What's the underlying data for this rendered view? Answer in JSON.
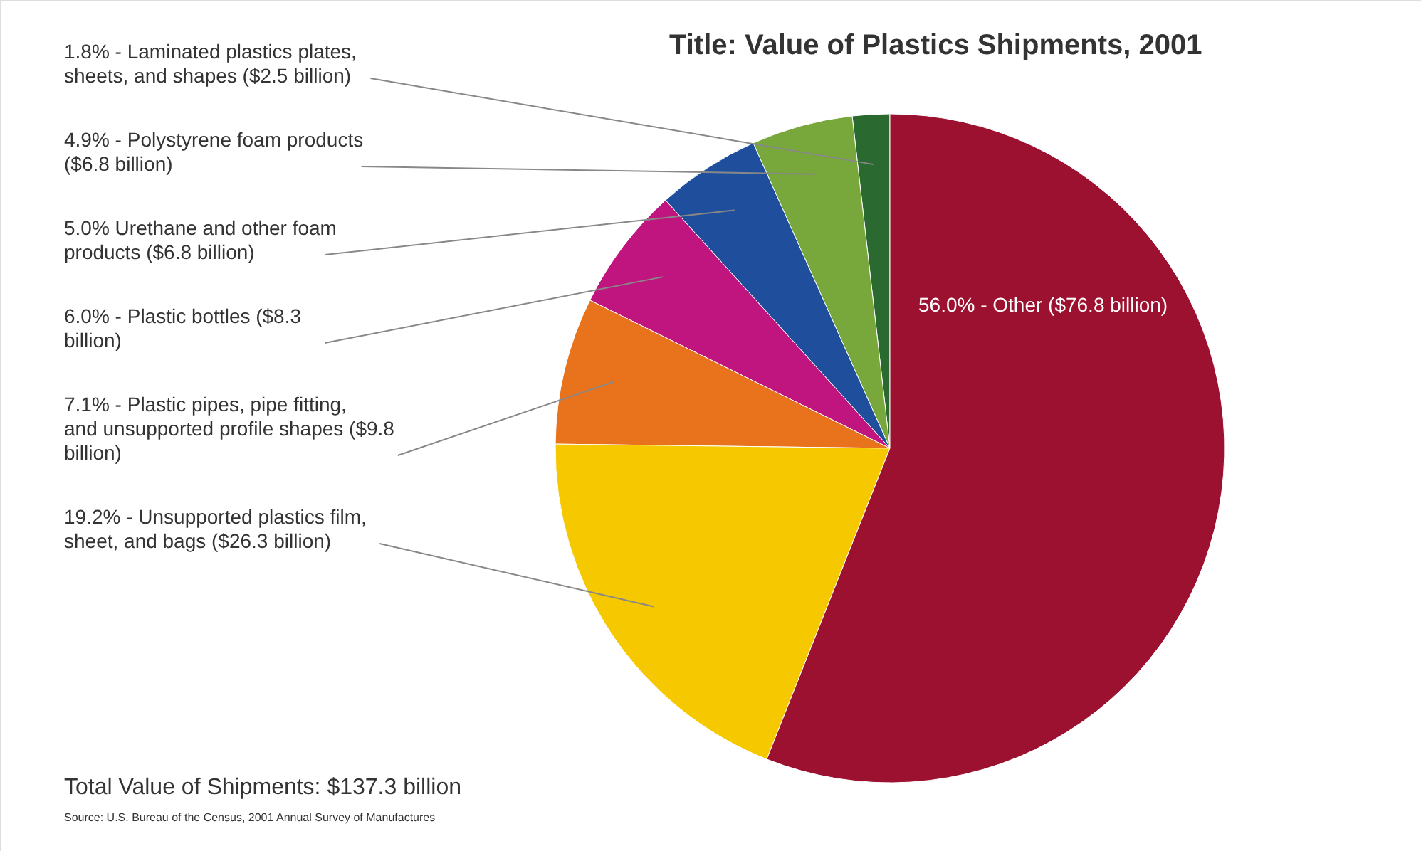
{
  "chart_data": {
    "type": "pie",
    "title": "Title: Value of Plastics Shipments, 2001",
    "categories": [
      "1.8% - Laminated plastics plates, sheets, and shapes ($2.5 billion)",
      "4.9% - Polystyrene foam products ($6.8 billion)",
      "5.0% Urethane and other foam products ($6.8 billion)",
      "6.0% - Plastic bottles ($8.3 billion)",
      "7.1% - Plastic pipes, pipe fitting, and unsupported profile shapes ($9.8 billion)",
      "19.2% - Unsupported plastics film, sheet, and bags ($26.3 billion)",
      "56.0% - Other ($76.8 billion)"
    ],
    "values": [
      1.8,
      4.9,
      5.0,
      6.0,
      7.1,
      19.2,
      56.0
    ],
    "colors": [
      "#2a6a30",
      "#78a83c",
      "#1f4f9c",
      "#c0147f",
      "#e8731c",
      "#f5c800",
      "#9c1030"
    ],
    "annotations": [
      "Total Value of Shipments: $137.3 billion",
      "Source: U.S. Bureau of the Census, 2001 Annual Survey of Manufactures"
    ]
  }
}
